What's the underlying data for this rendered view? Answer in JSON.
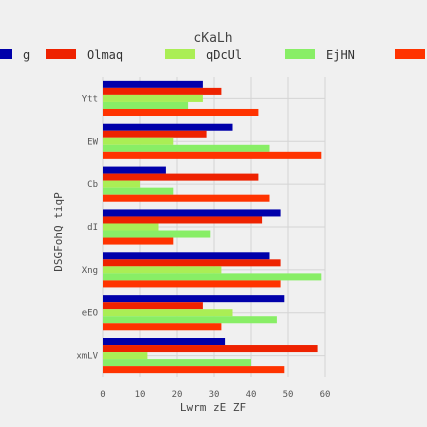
{
  "chart_data": {
    "type": "bar",
    "orientation": "horizontal",
    "title": "cKaLh",
    "xlabel": "Lwrm zE ZF",
    "ylabel": "DSGFohQ tiqP",
    "xlim": [
      0,
      60
    ],
    "xticks": [
      0,
      10,
      20,
      30,
      40,
      50,
      60
    ],
    "grid": true,
    "legend_position": "top",
    "categories": [
      "Ytt",
      "EW",
      "Cb",
      "dI",
      "Xng",
      "eEO",
      "xmLV"
    ],
    "series": [
      {
        "name": "",
        "color": "#0000aa",
        "values": [
          27,
          35,
          17,
          48,
          45,
          49,
          33
        ]
      },
      {
        "name": "",
        "color": "#ee2200",
        "values": [
          32,
          28,
          42,
          43,
          48,
          27,
          58
        ]
      },
      {
        "name": "",
        "color": "#aaee55",
        "values": [
          27,
          19,
          10,
          15,
          32,
          35,
          12
        ]
      },
      {
        "name": "",
        "color": "#88ee66",
        "values": [
          23,
          45,
          19,
          29,
          59,
          47,
          40
        ]
      },
      {
        "name": "",
        "color": "#ff3300",
        "values": [
          42,
          59,
          45,
          19,
          48,
          32,
          49
        ]
      }
    ],
    "legend": [
      {
        "label": "g",
        "color": "#0000aa"
      },
      {
        "label": "Olmaq",
        "color": "#ee2200"
      },
      {
        "label": "qDcUl",
        "color": "#aaee55"
      },
      {
        "label": "EjHN",
        "color": "#88ee66"
      },
      {
        "label": "",
        "color": "#ff3300"
      }
    ]
  }
}
